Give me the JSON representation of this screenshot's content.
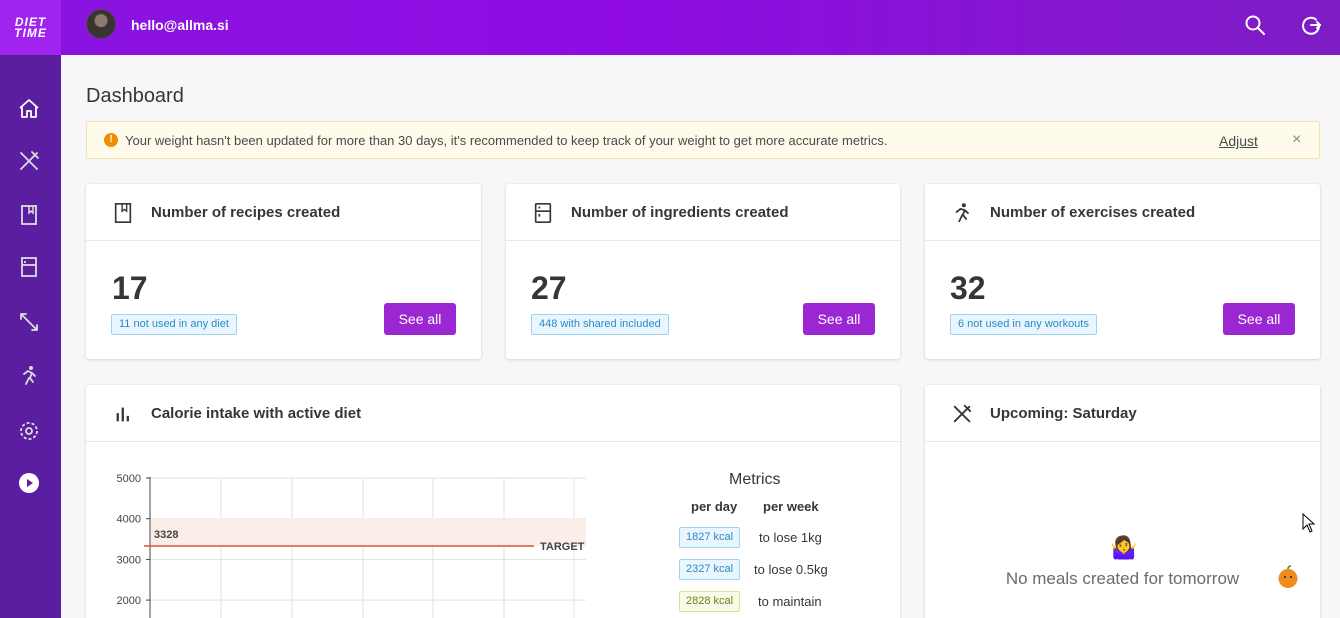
{
  "app": {
    "logo_line1": "DIET",
    "logo_line2": "TIME",
    "user_email": "hello@allma.si"
  },
  "topbar": {
    "search_icon": "search-icon",
    "logout_icon": "logout-icon"
  },
  "sidebar": {
    "items": [
      {
        "name": "home",
        "icon": "home-icon"
      },
      {
        "name": "meals",
        "icon": "utensils-icon"
      },
      {
        "name": "recipes",
        "icon": "book-icon"
      },
      {
        "name": "ingredients",
        "icon": "fridge-icon"
      },
      {
        "name": "weight",
        "icon": "expand-icon"
      },
      {
        "name": "exercises",
        "icon": "running-icon"
      },
      {
        "name": "settings",
        "icon": "gear-icon"
      },
      {
        "name": "play",
        "icon": "play-icon"
      }
    ]
  },
  "page": {
    "title": "Dashboard"
  },
  "alert": {
    "text": "Your weight hasn't been updated for more than 30 days, it's recommended to keep track of your weight to get more accurate metrics.",
    "adjust_label": "Adjust",
    "close_label": "×"
  },
  "stats": [
    {
      "title": "Number of recipes created",
      "value": "17",
      "tag": "11 not used in any diet",
      "button": "See all"
    },
    {
      "title": "Number of ingredients created",
      "value": "27",
      "tag": "448 with shared included",
      "button": "See all"
    },
    {
      "title": "Number of exercises created",
      "value": "32",
      "tag": "6 not used in any workouts",
      "button": "See all"
    }
  ],
  "calorie_card": {
    "title": "Calorie intake with active diet",
    "metrics": {
      "title": "Metrics",
      "per_day": "per day",
      "per_week": "per week",
      "rows": [
        {
          "kcal": "1827 kcal",
          "goal": "to lose 1kg",
          "color": "blue"
        },
        {
          "kcal": "2327 kcal",
          "goal": "to lose 0.5kg",
          "color": "blue"
        },
        {
          "kcal": "2828 kcal",
          "goal": "to maintain",
          "color": "green"
        }
      ]
    }
  },
  "chart_data": {
    "type": "line",
    "y_ticks": [
      "5000",
      "4000",
      "3000",
      "2000"
    ],
    "ylim": [
      2000,
      5000
    ],
    "target": {
      "value": 3328,
      "label": "3328",
      "name": "TARGET",
      "band": [
        3328,
        4000
      ]
    },
    "colors": {
      "target": "#d9542c",
      "band": "#fbeee9"
    },
    "series": []
  },
  "upcoming_card": {
    "title": "Upcoming: Saturday",
    "emoji": "🤷‍♀️",
    "empty_text": "No meals created for tomorrow"
  }
}
